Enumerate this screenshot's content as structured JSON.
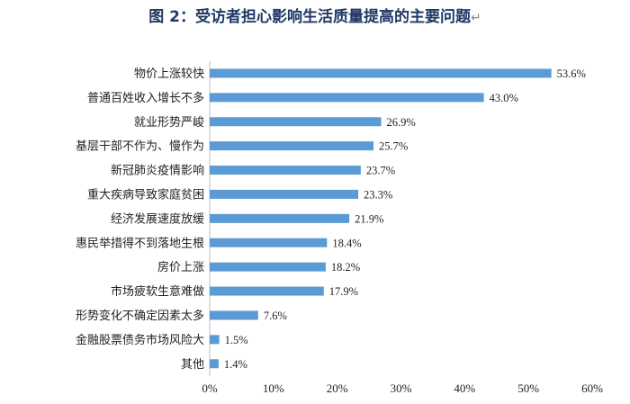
{
  "chart_data": {
    "type": "bar",
    "orientation": "horizontal",
    "title": "图 2：受访者担心影响生活质量提高的主要问题",
    "categories": [
      "物价上涨较快",
      "普通百姓收入增长不多",
      "就业形势严峻",
      "基层干部不作为、慢作为",
      "新冠肺炎疫情影响",
      "重大疾病导致家庭贫困",
      "经济发展速度放缓",
      "惠民举措得不到落地生根",
      "房价上涨",
      "市场疲软生意难做",
      "形势变化不确定因素太多",
      "金融股票债务市场风险大",
      "其他"
    ],
    "values": [
      53.6,
      43.0,
      26.9,
      25.7,
      23.7,
      23.3,
      21.9,
      18.4,
      18.2,
      17.9,
      7.6,
      1.5,
      1.4
    ],
    "value_labels": [
      "53.6%",
      "43.0%",
      "26.9%",
      "25.7%",
      "23.7%",
      "23.3%",
      "21.9%",
      "18.4%",
      "18.2%",
      "17.9%",
      "7.6%",
      "1.5%",
      "1.4%"
    ],
    "xlim": [
      0,
      60
    ],
    "x_ticks": [
      "0%",
      "10%",
      "20%",
      "30%",
      "40%",
      "50%",
      "60%"
    ],
    "grid": false,
    "legend": "none",
    "bar_color": "#5b9bd5"
  }
}
